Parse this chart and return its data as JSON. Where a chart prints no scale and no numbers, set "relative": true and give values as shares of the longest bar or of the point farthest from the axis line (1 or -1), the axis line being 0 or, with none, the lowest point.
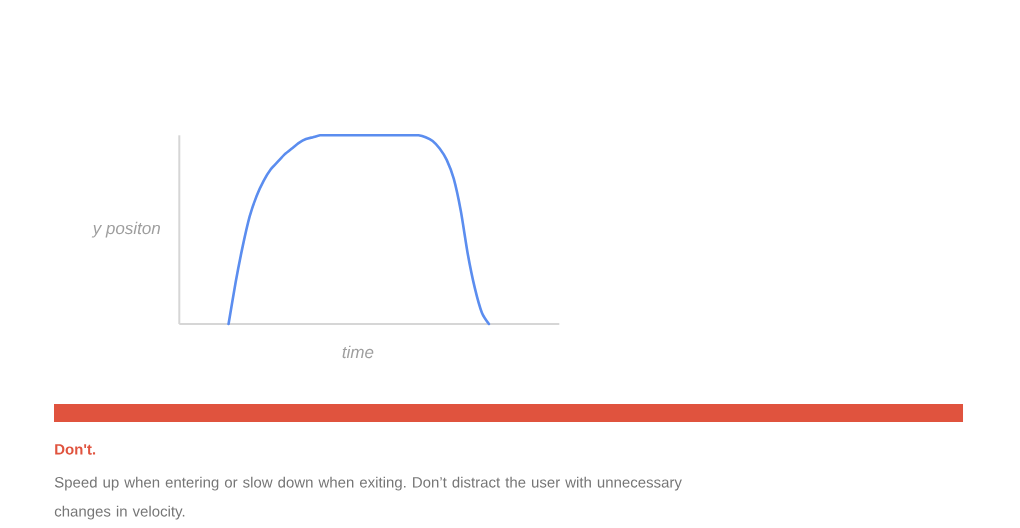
{
  "chart_data": {
    "type": "line",
    "relative": true,
    "xlabel": "time",
    "ylabel": "y positon",
    "color": "#5b8def",
    "tick_labels": false,
    "categories": [
      null,
      null,
      null,
      null,
      null,
      null,
      null,
      null,
      null,
      null,
      null,
      null,
      null,
      null,
      null,
      null,
      null,
      null,
      null,
      null,
      null,
      null,
      null,
      null,
      null,
      null,
      null,
      null,
      null,
      null,
      null,
      null,
      null,
      null,
      null,
      null,
      null,
      null,
      null,
      null,
      null,
      null,
      null,
      null,
      null,
      null,
      null,
      null,
      null,
      null,
      null,
      null,
      null,
      null,
      null
    ],
    "values": [
      null,
      null,
      null,
      null,
      null,
      null,
      null,
      0,
      0.22,
      0.41,
      0.57,
      0.68,
      0.76,
      0.82,
      0.86,
      0.9,
      0.93,
      0.96,
      0.98,
      0.99,
      1,
      1,
      1,
      1,
      1,
      1,
      1,
      1,
      1,
      1,
      1,
      1,
      1,
      1,
      1,
      0.99,
      0.97,
      0.93,
      0.87,
      0.77,
      0.6,
      0.37,
      0.19,
      0.06,
      0,
      null,
      null,
      null,
      null,
      null,
      null,
      null,
      null,
      null,
      null
    ],
    "annotations": [
      "Don't.",
      "Speed up when entering or slow down when exiting. Don’t distract the user with unnecessary changes in velocity."
    ]
  }
}
